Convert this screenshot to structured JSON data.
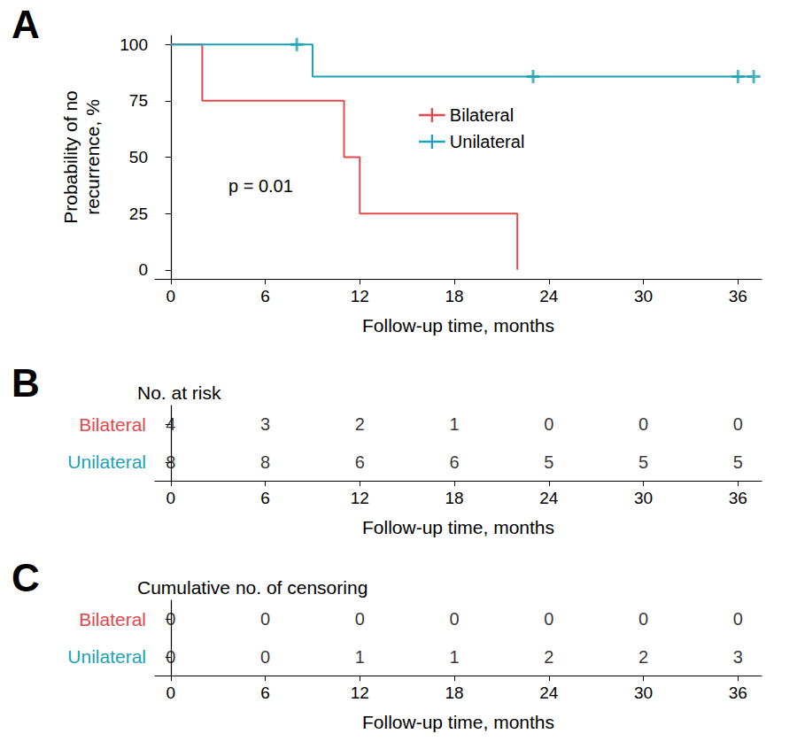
{
  "chart_data": [
    {
      "panel": "A",
      "type": "line",
      "xlabel": "Follow-up time, months",
      "ylabel": "Probability of no\nrecurrence, %",
      "xlim": [
        -1,
        37.5
      ],
      "xticks": [
        0,
        6,
        12,
        18,
        24,
        30,
        36
      ],
      "ylim": [
        -4,
        104
      ],
      "yticks": [
        0,
        25,
        50,
        75,
        100
      ],
      "grid": false,
      "legend": "top",
      "line_style": "step",
      "marker": "plus",
      "annotation": "p = 0.01",
      "series": [
        {
          "name": "Bilateral",
          "color": "#e5474b",
          "x": [
            0,
            2,
            11,
            12,
            22
          ],
          "values": [
            100,
            75,
            50,
            25,
            0
          ],
          "censored": {
            "x": [],
            "values": []
          }
        },
        {
          "name": "Unilateral",
          "color": "#1ba3b3",
          "x": [
            0,
            9,
            37
          ],
          "values": [
            100,
            85.7,
            85.7
          ],
          "censored": {
            "x": [
              8,
              23,
              36,
              37
            ],
            "values": [
              100,
              85.7,
              85.7,
              85.7
            ]
          }
        }
      ]
    },
    {
      "panel": "B",
      "type": "table",
      "title": "No. at risk",
      "xlabel": "Follow-up time, months",
      "xlim": [
        -1,
        37.5
      ],
      "xticks": [
        0,
        6,
        12,
        18,
        24,
        30,
        36
      ],
      "x": [
        0,
        6,
        12,
        18,
        24,
        30,
        36
      ],
      "series": [
        {
          "name": "Bilateral",
          "color": "#e5474b",
          "values": [
            4,
            3,
            2,
            1,
            0,
            0,
            0
          ]
        },
        {
          "name": "Unilateral",
          "color": "#1ba3b3",
          "values": [
            8,
            8,
            6,
            6,
            5,
            5,
            5
          ]
        }
      ]
    },
    {
      "panel": "C",
      "type": "table",
      "title": "Cumulative no. of censoring",
      "xlabel": "Follow-up time, months",
      "xlim": [
        -1,
        37.5
      ],
      "xticks": [
        0,
        6,
        12,
        18,
        24,
        30,
        36
      ],
      "x": [
        0,
        6,
        12,
        18,
        24,
        30,
        36
      ],
      "series": [
        {
          "name": "Bilateral",
          "color": "#e5474b",
          "values": [
            0,
            0,
            0,
            0,
            0,
            0,
            0
          ]
        },
        {
          "name": "Unilateral",
          "color": "#1ba3b3",
          "values": [
            0,
            0,
            1,
            1,
            2,
            2,
            3
          ]
        }
      ]
    }
  ]
}
